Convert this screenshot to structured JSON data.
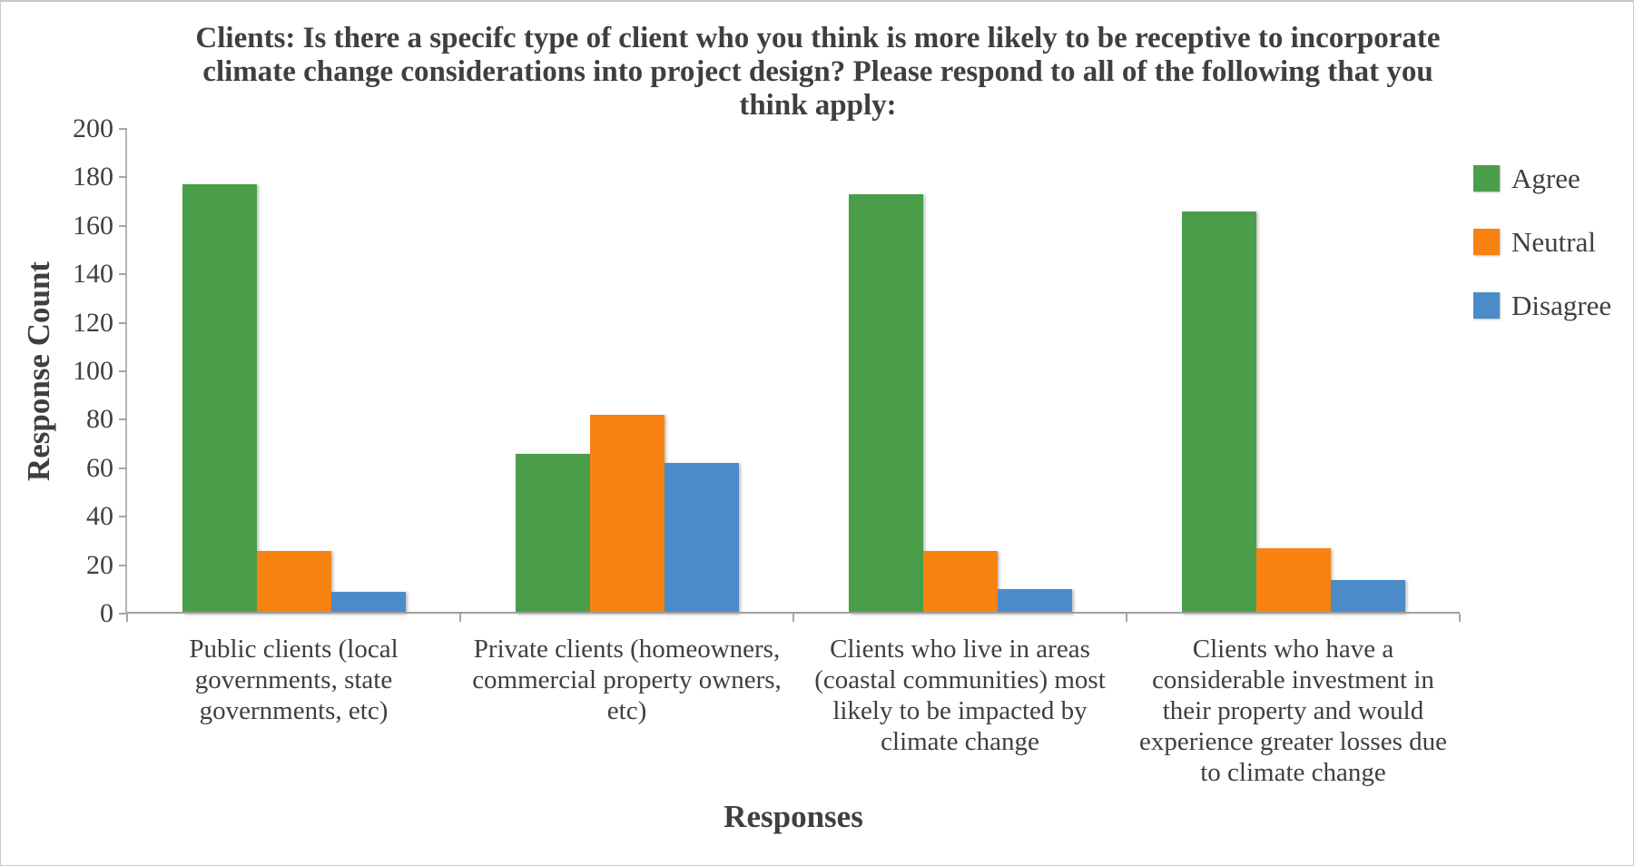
{
  "figure": {
    "background": "#ffffff",
    "border_color": "#c8c8c8"
  },
  "colors": {
    "text": "#3f3f3f",
    "axis": "#a6a6a6"
  },
  "chart_data": {
    "type": "bar",
    "title": "Clients: Is there a specifc type of client who you think is more likely to be receptive to incorporate climate change considerations into project design? Please respond to all of the following that you think apply:",
    "xlabel": "Responses",
    "ylabel": "Response Count",
    "ylim": [
      0,
      200
    ],
    "yticks": [
      0,
      20,
      40,
      60,
      80,
      100,
      120,
      140,
      160,
      180,
      200
    ],
    "grid": false,
    "legend_position": "right",
    "categories": [
      "Public clients (local governments, state governments, etc)",
      "Private clients (homeowners, commercial property owners, etc)",
      "Clients who live in areas (coastal communities) most likely to be impacted by climate change",
      "Clients who have a considerable investment in their property and would experience greater losses due to climate change"
    ],
    "series": [
      {
        "name": "Agree",
        "color": "#4a9e49",
        "values": [
          177,
          66,
          173,
          166
        ]
      },
      {
        "name": "Neutral",
        "color": "#f78212",
        "values": [
          26,
          82,
          26,
          27
        ]
      },
      {
        "name": "Disagree",
        "color": "#4b8cc8",
        "values": [
          9,
          62,
          10,
          14
        ]
      }
    ]
  }
}
